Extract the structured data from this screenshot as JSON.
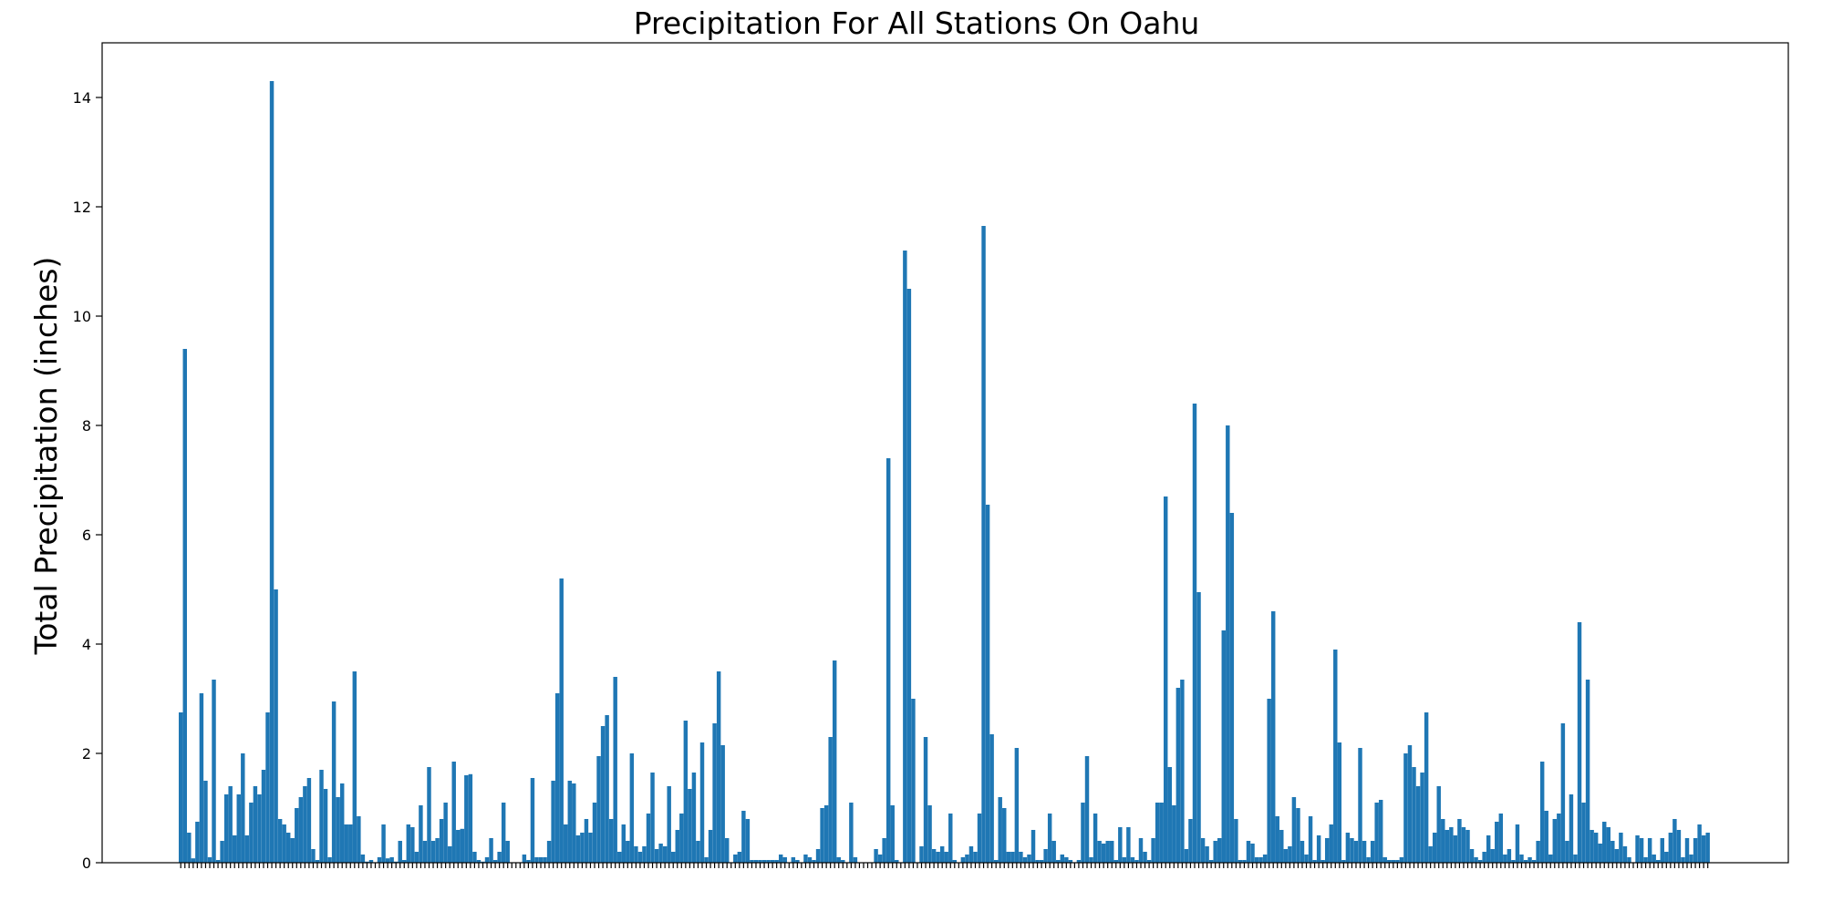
{
  "chart_data": {
    "type": "bar",
    "title": "Precipitation For All Stations On Oahu",
    "xlabel": "",
    "ylabel": "Total Precipitation (inches)",
    "ylim": [
      0,
      15
    ],
    "yticks": [
      0,
      2,
      4,
      6,
      8,
      10,
      12,
      14
    ],
    "xticks_note": "",
    "color": "#1f77b4",
    "grid": false,
    "legend": "none",
    "values": [
      2.75,
      9.4,
      0.55,
      0.08,
      0.75,
      3.1,
      1.5,
      0.1,
      3.35,
      0.05,
      0.4,
      1.25,
      1.4,
      0.5,
      1.25,
      2.0,
      0.5,
      1.1,
      1.4,
      1.25,
      1.7,
      2.75,
      14.3,
      5.0,
      0.8,
      0.7,
      0.55,
      0.45,
      1.0,
      1.2,
      1.4,
      1.55,
      0.25,
      0.05,
      1.7,
      1.35,
      0.1,
      2.95,
      1.2,
      1.45,
      0.7,
      0.7,
      3.5,
      0.85,
      0.15,
      0.02,
      0.05,
      0.0,
      0.1,
      0.7,
      0.08,
      0.1,
      0.02,
      0.4,
      0.05,
      0.7,
      0.65,
      0.2,
      1.05,
      0.4,
      1.75,
      0.4,
      0.45,
      0.8,
      1.1,
      0.3,
      1.85,
      0.6,
      0.62,
      1.6,
      1.62,
      0.2,
      0.05,
      0.02,
      0.1,
      0.45,
      0.05,
      0.2,
      1.1,
      0.4,
      0.0,
      0.0,
      0.0,
      0.15,
      0.05,
      1.55,
      0.1,
      0.1,
      0.1,
      0.4,
      1.5,
      3.1,
      5.2,
      0.7,
      1.5,
      1.45,
      0.5,
      0.55,
      0.8,
      0.55,
      1.1,
      1.95,
      2.5,
      2.7,
      0.8,
      3.4,
      0.2,
      0.7,
      0.4,
      2.0,
      0.3,
      0.2,
      0.3,
      0.9,
      1.65,
      0.25,
      0.35,
      0.3,
      1.4,
      0.2,
      0.6,
      0.9,
      2.6,
      1.35,
      1.65,
      0.4,
      2.2,
      0.1,
      0.6,
      2.55,
      3.5,
      2.15,
      0.45,
      0.0,
      0.15,
      0.2,
      0.95,
      0.8,
      0.05,
      0.05,
      0.05,
      0.05,
      0.05,
      0.05,
      0.05,
      0.15,
      0.1,
      0.0,
      0.1,
      0.05,
      0.0,
      0.15,
      0.1,
      0.05,
      0.25,
      1.0,
      1.05,
      2.3,
      3.7,
      0.1,
      0.05,
      0.0,
      1.1,
      0.1,
      0.0,
      0.0,
      0.0,
      0.0,
      0.25,
      0.15,
      0.45,
      7.4,
      1.05,
      0.05,
      0.0,
      11.2,
      10.5,
      3.0,
      0.0,
      0.3,
      2.3,
      1.05,
      0.25,
      0.2,
      0.3,
      0.2,
      0.9,
      0.05,
      0.0,
      0.1,
      0.15,
      0.3,
      0.2,
      0.9,
      11.65,
      6.55,
      2.35,
      0.05,
      1.2,
      1.0,
      0.2,
      0.2,
      2.1,
      0.2,
      0.1,
      0.15,
      0.6,
      0.05,
      0.05,
      0.25,
      0.9,
      0.4,
      0.05,
      0.15,
      0.1,
      0.05,
      0.0,
      0.05,
      1.1,
      1.95,
      0.1,
      0.9,
      0.4,
      0.35,
      0.4,
      0.4,
      0.05,
      0.65,
      0.1,
      0.65,
      0.1,
      0.05,
      0.45,
      0.2,
      0.05,
      0.45,
      1.1,
      1.1,
      6.7,
      1.75,
      1.05,
      3.2,
      3.35,
      0.25,
      0.8,
      8.4,
      4.95,
      0.45,
      0.3,
      0.05,
      0.4,
      0.45,
      4.25,
      8.0,
      6.4,
      0.8,
      0.05,
      0.05,
      0.4,
      0.35,
      0.1,
      0.1,
      0.15,
      3.0,
      4.6,
      0.85,
      0.6,
      0.25,
      0.3,
      1.2,
      1.0,
      0.4,
      0.15,
      0.85,
      0.05,
      0.5,
      0.05,
      0.45,
      0.7,
      3.9,
      2.2,
      0.05,
      0.55,
      0.45,
      0.4,
      2.1,
      0.4,
      0.1,
      0.4,
      1.1,
      1.15,
      0.1,
      0.05,
      0.05,
      0.05,
      0.1,
      2.0,
      2.15,
      1.75,
      1.4,
      1.65,
      2.75,
      0.3,
      0.55,
      1.4,
      0.8,
      0.6,
      0.65,
      0.5,
      0.8,
      0.65,
      0.6,
      0.25,
      0.1,
      0.05,
      0.2,
      0.5,
      0.25,
      0.75,
      0.9,
      0.15,
      0.25,
      0.05,
      0.7,
      0.15,
      0.05,
      0.1,
      0.05,
      0.4,
      1.85,
      0.95,
      0.15,
      0.8,
      0.9,
      2.55,
      0.4,
      1.25,
      0.15,
      4.4,
      1.1,
      3.35,
      0.6,
      0.55,
      0.35,
      0.75,
      0.65,
      0.4,
      0.25,
      0.55,
      0.3,
      0.1,
      0.0,
      0.5,
      0.45,
      0.1,
      0.45,
      0.15,
      0.05,
      0.45,
      0.2,
      0.55,
      0.8,
      0.6,
      0.1,
      0.45,
      0.15,
      0.45,
      0.7,
      0.5,
      0.55
    ]
  }
}
